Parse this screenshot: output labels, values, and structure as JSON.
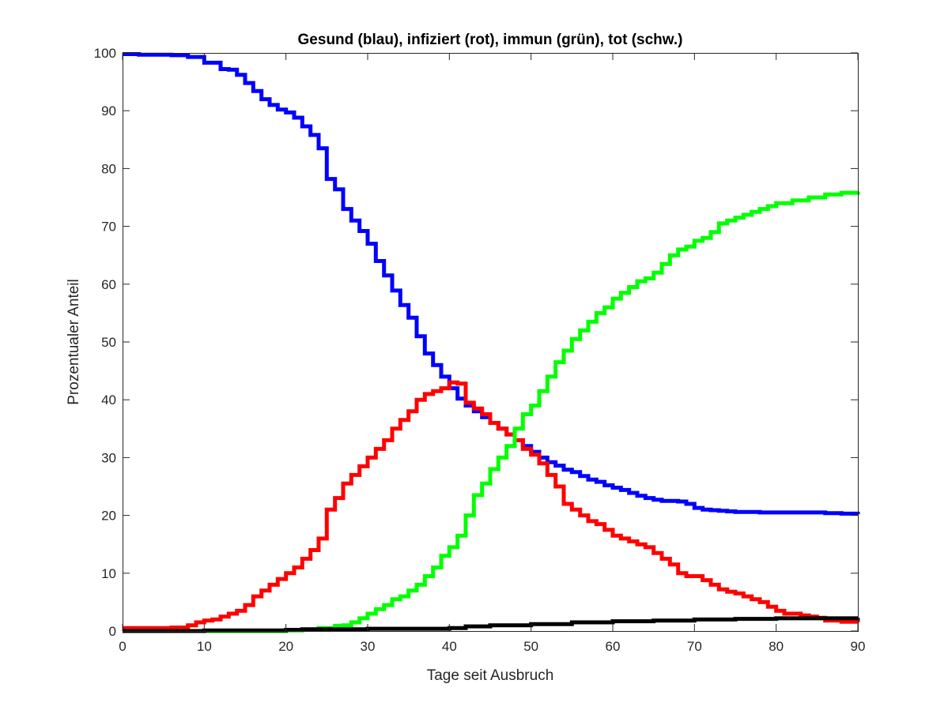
{
  "chart_data": {
    "type": "line",
    "title": "Gesund (blau), infiziert (rot), immun (grün), tot (schw.)",
    "xlabel": "Tage seit Ausbruch",
    "ylabel": "Prozentualer Anteil",
    "xlim": [
      0,
      90
    ],
    "ylim": [
      0,
      100
    ],
    "xticks": [
      0,
      10,
      20,
      30,
      40,
      50,
      60,
      70,
      80,
      90
    ],
    "yticks": [
      0,
      10,
      20,
      30,
      40,
      50,
      60,
      70,
      80,
      90,
      100
    ],
    "grid": false,
    "legend": "none",
    "series": [
      {
        "color": "#0000ff",
        "x": [
          0,
          2,
          4,
          6,
          8,
          10,
          12,
          13,
          14,
          15,
          16,
          17,
          18,
          19,
          20,
          21,
          22,
          23,
          24,
          25,
          26,
          27,
          28,
          29,
          30,
          31,
          32,
          33,
          34,
          35,
          36,
          37,
          38,
          39,
          40,
          41,
          42,
          43,
          44,
          45,
          46,
          47,
          48,
          49,
          50,
          51,
          52,
          53,
          54,
          55,
          56,
          57,
          58,
          59,
          60,
          61,
          62,
          63,
          64,
          65,
          66,
          67,
          68,
          69,
          70,
          71,
          72,
          73,
          74,
          75,
          76,
          78,
          80,
          82,
          84,
          86,
          88,
          90
        ],
        "y": [
          99.8,
          99.7,
          99.7,
          99.6,
          99.3,
          98.3,
          97.2,
          97.1,
          96.2,
          94.8,
          93.4,
          92.0,
          91.0,
          90.2,
          89.7,
          88.8,
          87.3,
          85.8,
          83.5,
          78.2,
          76.4,
          73.0,
          71.0,
          69.2,
          67.0,
          64.0,
          61.5,
          58.9,
          56.4,
          54.2,
          51.0,
          48.0,
          46.0,
          44.0,
          42.0,
          40.2,
          39.0,
          38.0,
          37.0,
          36.0,
          35.0,
          34.0,
          33.0,
          32.0,
          31.0,
          30.0,
          29.2,
          28.6,
          27.9,
          27.5,
          26.8,
          26.2,
          25.8,
          25.2,
          24.8,
          24.4,
          23.9,
          23.4,
          23.0,
          22.7,
          22.5,
          22.5,
          22.4,
          22.0,
          21.3,
          21.0,
          20.9,
          20.8,
          20.7,
          20.6,
          20.6,
          20.5,
          20.5,
          20.5,
          20.5,
          20.4,
          20.3,
          20.2
        ]
      },
      {
        "color": "#ff0000",
        "x": [
          0,
          2,
          4,
          6,
          8,
          9,
          10,
          11,
          12,
          13,
          14,
          15,
          16,
          17,
          18,
          19,
          20,
          21,
          22,
          23,
          24,
          25,
          26,
          27,
          28,
          29,
          30,
          31,
          32,
          33,
          34,
          35,
          36,
          37,
          38,
          39,
          40,
          41,
          42,
          43,
          44,
          45,
          46,
          47,
          48,
          49,
          50,
          51,
          52,
          53,
          54,
          55,
          56,
          57,
          58,
          59,
          60,
          61,
          62,
          63,
          64,
          65,
          66,
          67,
          68,
          69,
          70,
          71,
          72,
          73,
          74,
          75,
          76,
          77,
          78,
          79,
          80,
          81,
          82,
          83,
          84,
          85,
          86,
          88,
          90
        ],
        "y": [
          0.5,
          0.5,
          0.5,
          0.6,
          1.0,
          1.5,
          1.8,
          2.0,
          2.5,
          3.0,
          3.5,
          4.5,
          6.0,
          7.0,
          8.0,
          9.0,
          10.0,
          11.0,
          12.5,
          14.0,
          16.0,
          21.0,
          23.0,
          25.5,
          27.0,
          28.5,
          30.0,
          31.5,
          33.0,
          35.0,
          36.5,
          38.0,
          40.0,
          41.0,
          41.5,
          42.0,
          43.0,
          42.8,
          39.5,
          38.5,
          37.5,
          36.0,
          35.0,
          34.0,
          33.0,
          31.5,
          30.5,
          29.0,
          27.0,
          25.0,
          22.0,
          21.0,
          20.0,
          19.0,
          18.5,
          17.5,
          16.5,
          16.0,
          15.5,
          15.0,
          14.5,
          13.5,
          12.5,
          11.5,
          10.0,
          9.5,
          9.5,
          8.8,
          8.0,
          7.2,
          6.8,
          6.5,
          6.0,
          5.5,
          5.0,
          4.2,
          3.5,
          3.0,
          3.0,
          2.7,
          2.5,
          2.3,
          1.8,
          1.6,
          1.5
        ]
      },
      {
        "color": "#00ff00",
        "x": [
          0,
          8,
          10,
          16,
          20,
          22,
          24,
          26,
          27,
          28,
          29,
          30,
          31,
          32,
          33,
          34,
          35,
          36,
          37,
          38,
          39,
          40,
          41,
          42,
          43,
          44,
          45,
          46,
          47,
          48,
          49,
          50,
          51,
          52,
          53,
          54,
          55,
          56,
          57,
          58,
          59,
          60,
          61,
          62,
          63,
          64,
          65,
          66,
          67,
          68,
          69,
          70,
          71,
          72,
          73,
          74,
          75,
          76,
          77,
          78,
          79,
          80,
          82,
          84,
          86,
          88,
          90
        ],
        "y": [
          0,
          0,
          0,
          0,
          0.1,
          0.2,
          0.5,
          0.9,
          1.0,
          1.5,
          2.2,
          3.0,
          3.8,
          4.5,
          5.5,
          6.0,
          7.0,
          8.0,
          9.5,
          11.0,
          13.0,
          14.5,
          16.5,
          20.0,
          23.5,
          25.5,
          28.0,
          30.0,
          32.0,
          35.0,
          37.5,
          39.0,
          41.5,
          44.0,
          46.5,
          48.5,
          50.5,
          52.0,
          53.5,
          55.0,
          56.0,
          57.5,
          58.5,
          59.5,
          60.5,
          61.0,
          62.0,
          63.5,
          65.0,
          66.0,
          66.5,
          67.5,
          68.0,
          69.0,
          70.5,
          71.0,
          71.5,
          72.0,
          72.5,
          73.0,
          73.5,
          74.0,
          74.5,
          75.0,
          75.5,
          75.8,
          76.0
        ]
      },
      {
        "color": "#000000",
        "x": [
          0,
          5,
          10,
          15,
          20,
          22,
          25,
          30,
          35,
          40,
          42,
          45,
          50,
          55,
          60,
          65,
          70,
          75,
          80,
          85,
          90
        ],
        "y": [
          0,
          0,
          0.1,
          0.1,
          0.2,
          0.3,
          0.3,
          0.4,
          0.4,
          0.5,
          0.8,
          1.0,
          1.2,
          1.5,
          1.7,
          1.8,
          2.0,
          2.1,
          2.2,
          2.2,
          2.3
        ]
      }
    ]
  }
}
